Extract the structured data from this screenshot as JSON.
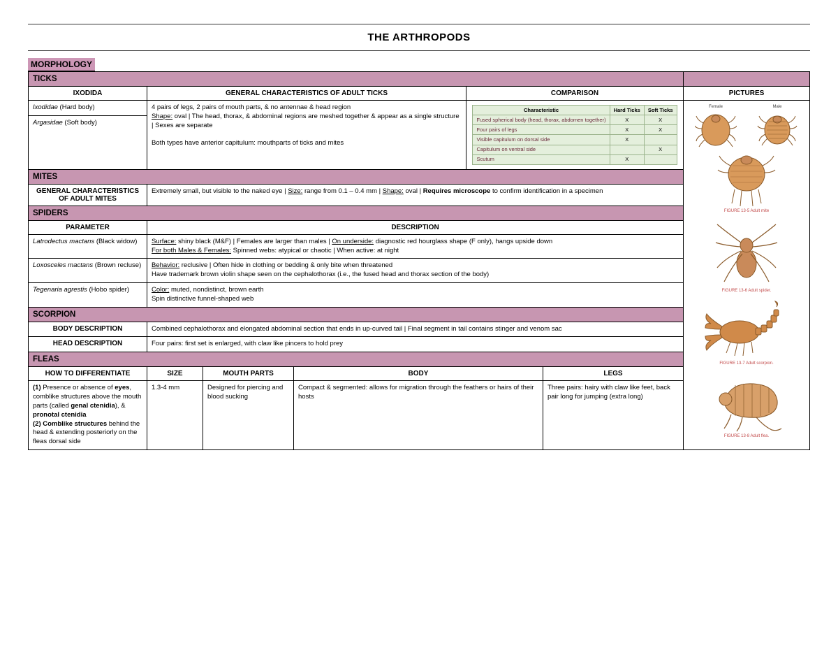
{
  "title": "THE ARTHROPODS",
  "section": "MORPHOLOGY",
  "colors": {
    "band": "#c796b1",
    "section_bg": "#cd97b6",
    "cmp_bg": "#e4efdc",
    "cmp_border": "#6a8a5a",
    "tick_fill": "#d99a5b",
    "tick_stroke": "#8a5a2a",
    "spider_fill": "#c98a5a",
    "scorp_fill": "#d08a4a",
    "flea_fill": "#d8a06a",
    "caption_color": "#c24a4a"
  },
  "ticks": {
    "band": "TICKS",
    "headers": [
      "IXODIDA",
      "GENERAL CHARACTERISTICS OF ADULT TICKS",
      "COMPARISON"
    ],
    "taxa": [
      {
        "name_it": "Ixodidae",
        "name_plain": " (Hard body)"
      },
      {
        "name_it": "Argasidae",
        "name_plain": " (Soft body)"
      }
    ],
    "char_line1": "4 pairs of legs, 2 pairs of mouth parts, & no antennae & head region",
    "char_line2_a": "Shape:",
    "char_line2_b": " oval | The head, thorax, & abdominal regions are meshed together & appear as a single structure | Sexes are separate",
    "char_line3": "Both types have anterior capitulum: mouthparts of ticks and mites",
    "cmp": {
      "cols": [
        "Characteristic",
        "Hard Ticks",
        "Soft Ticks"
      ],
      "rows": [
        {
          "l": "Fused spherical body (head, thorax, abdomen together)",
          "h": "X",
          "s": "X"
        },
        {
          "l": "Four pairs of legs",
          "h": "X",
          "s": "X"
        },
        {
          "l": "Visible capitulum on dorsal side",
          "h": "X",
          "s": ""
        },
        {
          "l": "Capitulum on ventral side",
          "h": "",
          "s": "X"
        },
        {
          "l": "Scutum",
          "h": "X",
          "s": ""
        }
      ]
    }
  },
  "mites": {
    "band": "MITES",
    "row_hdr": "GENERAL CHARACTERISTICS OF ADULT MITES",
    "t1": "Extremely small, but visible to the naked eye | ",
    "t2u": "Size:",
    "t3": " range from 0.1 – 0.4 mm | ",
    "t4u": "Shape:",
    "t5": " oval | ",
    "t6b": "Requires microscope",
    "t7": " to confirm identification in a specimen"
  },
  "spiders": {
    "band": "SPIDERS",
    "headers": [
      "PARAMETER",
      "DESCRIPTION"
    ],
    "rows": [
      {
        "p_it": "Latrodectus mactans",
        "p_plain": " (Black widow)",
        "d_html": "<span class='u'>Surface:</span> shiny black (M&F) | Females are larger than males | <span class='u'>On underside:</span> diagnostic red hourglass shape (F only), hangs upside down<br><span class='u'>For both Males & Females:</span> Spinned webs: atypical or chaotic | When active: at night"
      },
      {
        "p_it": "Loxosceles mactans",
        "p_plain": " (Brown recluse)",
        "d_html": "<span class='u'>Behavior:</span> reclusive | Often hide in clothing or bedding & only bite when threatened<br>Have trademark brown violin shape seen on the cephalothorax (i.e., the fused head and thorax section of the body)"
      },
      {
        "p_it": "Tegenaria agrestis",
        "p_plain": " (Hobo spider)",
        "d_html": "<span class='u'>Color:</span> muted, nondistinct, brown earth<br>Spin distinctive funnel-shaped web"
      }
    ]
  },
  "scorpion": {
    "band": "SCORPION",
    "rows": [
      {
        "h": "BODY DESCRIPTION",
        "d": "Combined cephalothorax and elongated abdominal section that ends in up-curved tail | Final segment in tail contains stinger and venom sac"
      },
      {
        "h": "HEAD DESCRIPTION",
        "d": "Four pairs: first set is enlarged, with claw like pincers to hold prey"
      }
    ]
  },
  "fleas": {
    "band": "FLEAS",
    "headers": [
      "HOW TO DIFFERENTIATE",
      "SIZE",
      "MOUTH PARTS",
      "BODY",
      "LEGS"
    ],
    "diff_html": "<b>(1)</b> Presence or absence of <b>eyes</b>, comblike structures above the mouth parts (called <b>genal ctenidia</b>), & <b>pronotal ctenidia</b><br><b>(2) Comblike structures</b> behind the head & extending posteriorly on the fleas dorsal side",
    "size": "1.3-4 mm",
    "mouth": "Designed for piercing and blood sucking",
    "body": "Compact & segmented: allows for migration through the feathers or hairs of their hosts",
    "legs": "Three pairs: hairy with claw like feet, back pair long for jumping (extra long)"
  },
  "pictures": {
    "header": "PICTURES",
    "tick_lbls": [
      "Female",
      "Male"
    ],
    "caps": [
      "FIGURE 13-5 Adult mite",
      "FIGURE 13-6 Adult spider.",
      "FIGURE 13-7 Adult scorpion.",
      "FIGURE 13-8 Adult flea."
    ]
  }
}
